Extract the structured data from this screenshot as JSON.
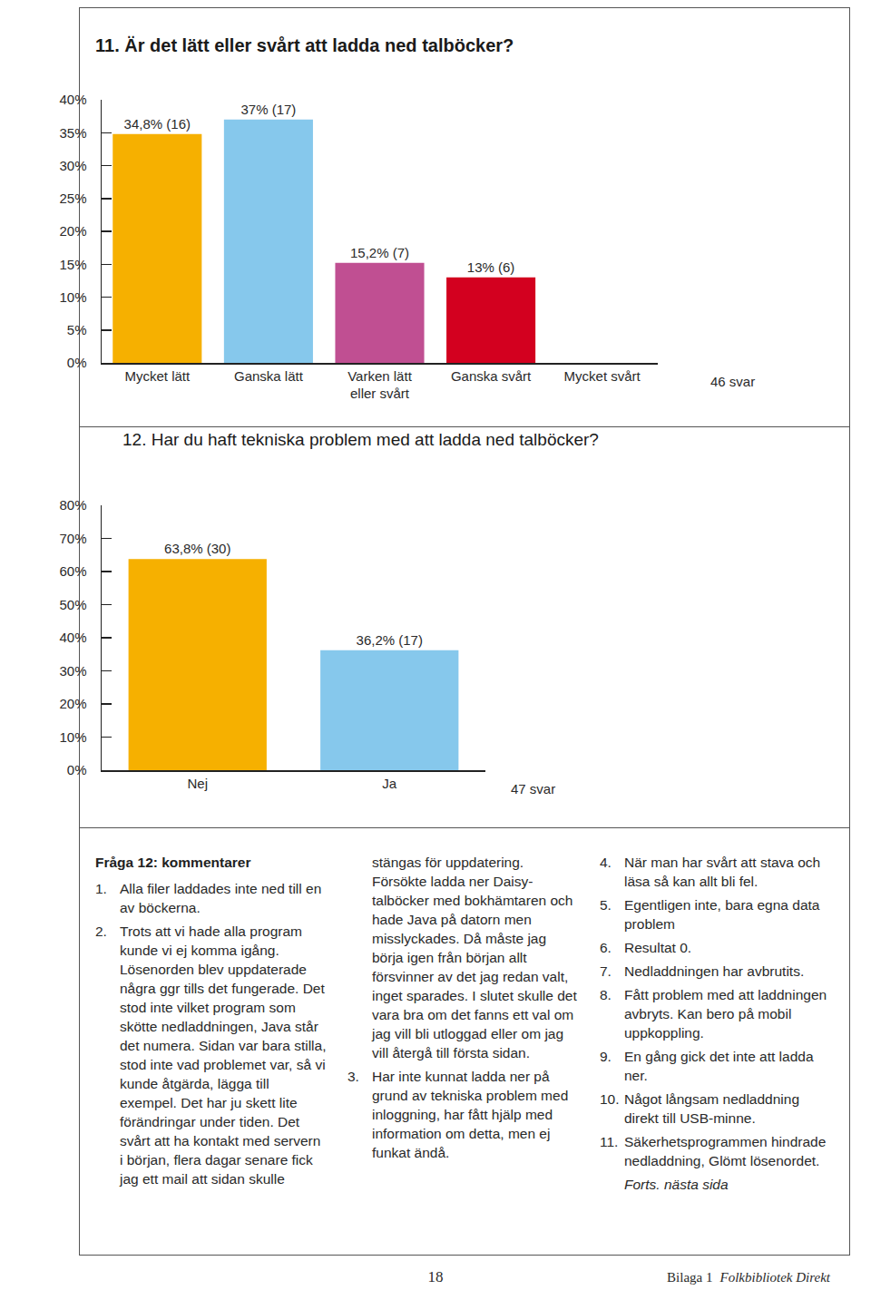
{
  "chart_data": [
    {
      "type": "bar",
      "title": "11. Är det lätt eller svårt att ladda ned talböcker?",
      "categories": [
        "Mycket lätt",
        "Ganska lätt",
        "Varken lätt eller svårt",
        "Ganska svårt",
        "Mycket svårt"
      ],
      "values": [
        34.8,
        37,
        15.2,
        13,
        0
      ],
      "value_labels": [
        "34,8% (16)",
        "37% (17)",
        "15,2% (7)",
        "13% (6)",
        null
      ],
      "colors": [
        "#f6b000",
        "#86c8ec",
        "#c04f92",
        "#d3001f",
        "#8b0a1a"
      ],
      "ylim": [
        0,
        40
      ],
      "yticks": [
        {
          "value": 0,
          "label": "0%"
        },
        {
          "value": 5,
          "label": "5%"
        },
        {
          "value": 10,
          "label": "10%"
        },
        {
          "value": 15,
          "label": "15%"
        },
        {
          "value": 20,
          "label": "20%"
        },
        {
          "value": 25,
          "label": "25%"
        },
        {
          "value": 30,
          "label": "30%"
        },
        {
          "value": 35,
          "label": "35%"
        },
        {
          "value": 40,
          "label": "40%"
        }
      ],
      "grid": false,
      "data_labels": true,
      "annotations": [
        "46 svar"
      ]
    },
    {
      "type": "bar",
      "title": "12. Har du haft tekniska problem med att ladda ned talböcker?",
      "categories": [
        "Nej",
        "Ja"
      ],
      "values": [
        63.8,
        36.2
      ],
      "value_labels": [
        "63,8% (30)",
        "36,2% (17)"
      ],
      "colors": [
        "#f6b000",
        "#86c8ec"
      ],
      "ylim": [
        0,
        80
      ],
      "yticks": [
        {
          "value": 0,
          "label": "0%"
        },
        {
          "value": 10,
          "label": "10%"
        },
        {
          "value": 20,
          "label": "20%"
        },
        {
          "value": 30,
          "label": "30%"
        },
        {
          "value": 40,
          "label": "40%"
        },
        {
          "value": 50,
          "label": "50%"
        },
        {
          "value": 60,
          "label": "60%"
        },
        {
          "value": 70,
          "label": "70%"
        },
        {
          "value": 80,
          "label": "80%"
        }
      ],
      "grid": false,
      "data_labels": true,
      "annotations": [
        "47 svar"
      ]
    }
  ],
  "comments": {
    "heading": "Fråga 12: kommentarer",
    "items": [
      {
        "number": "1.",
        "text": "Alla filer laddades inte ned till en av böckerna."
      },
      {
        "number": "2.",
        "text": "Trots att vi hade alla program kunde vi ej komma igång. Lösenorden blev uppdaterade några ggr tills det fungerade. Det stod inte vilket program som skötte nedladdningen, Java står det numera. Sidan var bara stilla, stod inte vad problemet var, så vi kunde åtgärda, lägga till exempel. Det har ju skett lite förändringar under tiden. Det svårt att ha kontakt med servern i början, flera dagar senare fick jag ett mail att sidan skulle stängas för uppdatering. Försökte ladda ner Daisy-talböcker med bokhämtaren och hade Java på datorn men misslyckades. Då måste jag börja igen från början allt försvinner av det jag redan valt, inget sparades. I slutet skulle det vara bra om det fanns ett val om jag vill bli utloggad eller om jag vill återgå till första sidan."
      },
      {
        "number": "3.",
        "text": "Har inte kunnat ladda ner på grund av tekniska problem med inloggning, har fått hjälp med information om detta, men ej funkat ändå."
      },
      {
        "number": "4.",
        "text": "När man har svårt att stava och läsa så kan allt bli fel."
      },
      {
        "number": "5.",
        "text": "Egentligen inte, bara egna data problem"
      },
      {
        "number": "6.",
        "text": "Resultat 0."
      },
      {
        "number": "7.",
        "text": "Nedladdningen har avbrutits."
      },
      {
        "number": "8.",
        "text": "Fått problem med att laddningen avbryts. Kan bero på mobil uppkoppling."
      },
      {
        "number": "9.",
        "text": "En gång gick det inte att ladda ner."
      },
      {
        "number": "10.",
        "text": "Något långsam nedladdning direkt till USB-minne."
      },
      {
        "number": "11.",
        "text": "Säkerhetsprogrammen hindrade nedladdning, Glömt lösenordet."
      }
    ],
    "continued": "Forts. nästa sida"
  },
  "footer": {
    "page": 18,
    "appendix": "Bilaga 1",
    "publication": "Folkbibliotek Direkt"
  }
}
